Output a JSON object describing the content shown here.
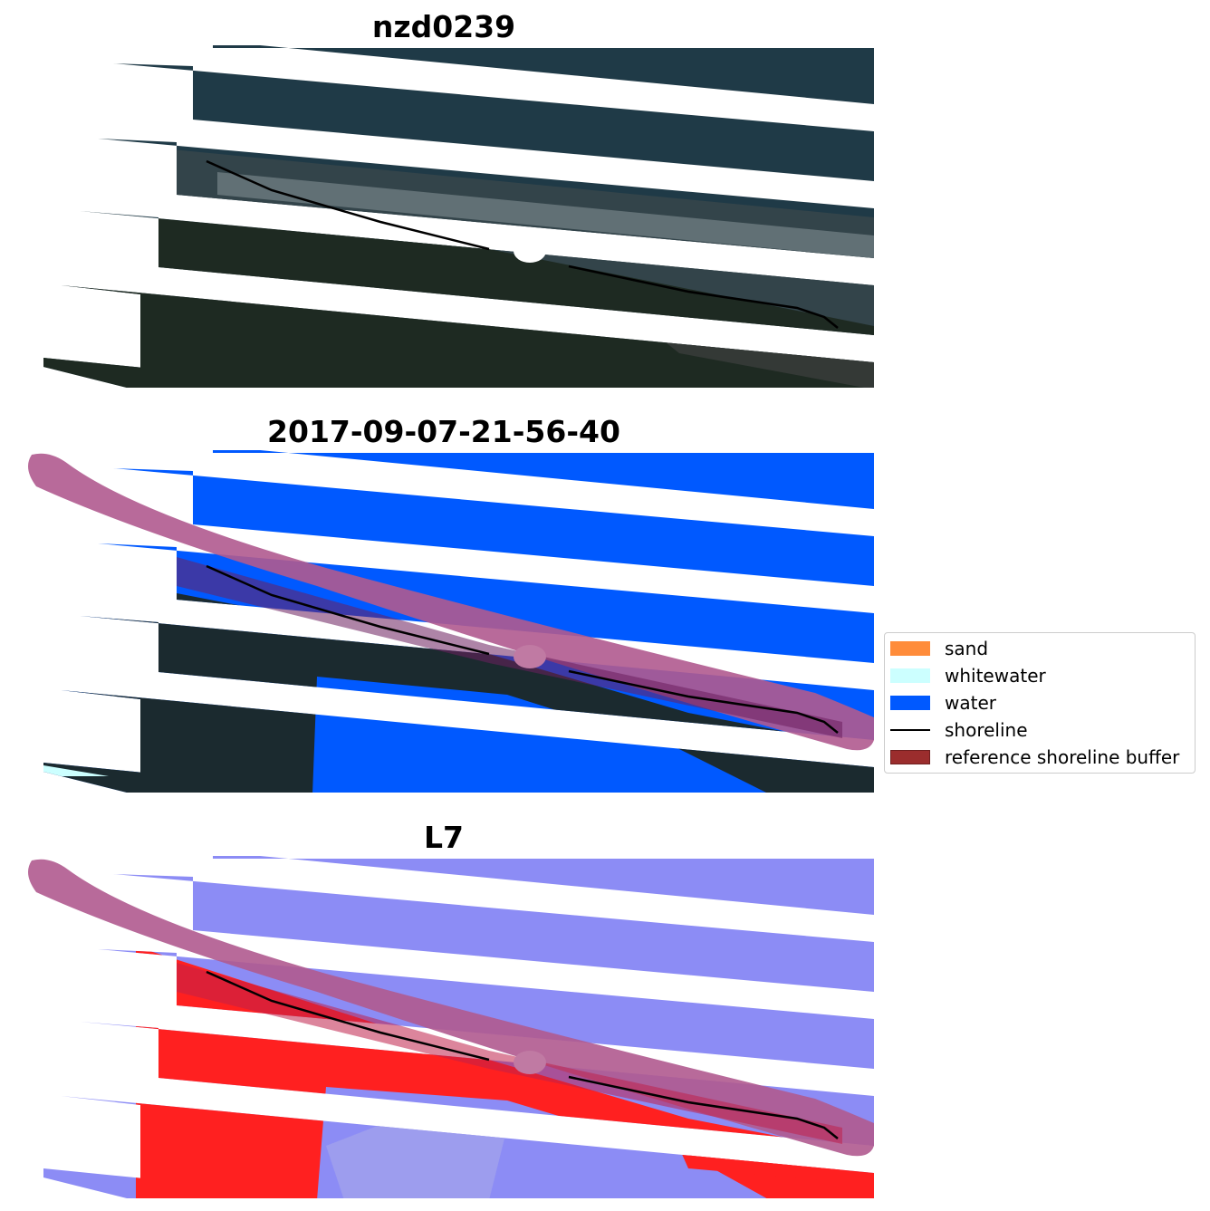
{
  "panels": [
    {
      "title": "nzd0239"
    },
    {
      "title": "2017-09-07-21-56-40"
    },
    {
      "title": "L7"
    }
  ],
  "legend": {
    "items": [
      {
        "label": "sand",
        "color": "#ff8c3a",
        "kind": "patch"
      },
      {
        "label": "whitewater",
        "color": "#ccffff",
        "kind": "patch"
      },
      {
        "label": "water",
        "color": "#0059ff",
        "kind": "patch"
      },
      {
        "label": "shoreline",
        "color": "#000000",
        "kind": "line"
      },
      {
        "label": "reference shoreline buffer",
        "color": "#9b2d2d",
        "kind": "patch"
      }
    ]
  },
  "colors": {
    "imagery_sea": "#1f3a47",
    "imagery_land": "#1e2a22",
    "water": "#0059ff",
    "buffer": "#b05a8f",
    "index_water": "#8c8cf5",
    "index_land": "#ff2020"
  }
}
